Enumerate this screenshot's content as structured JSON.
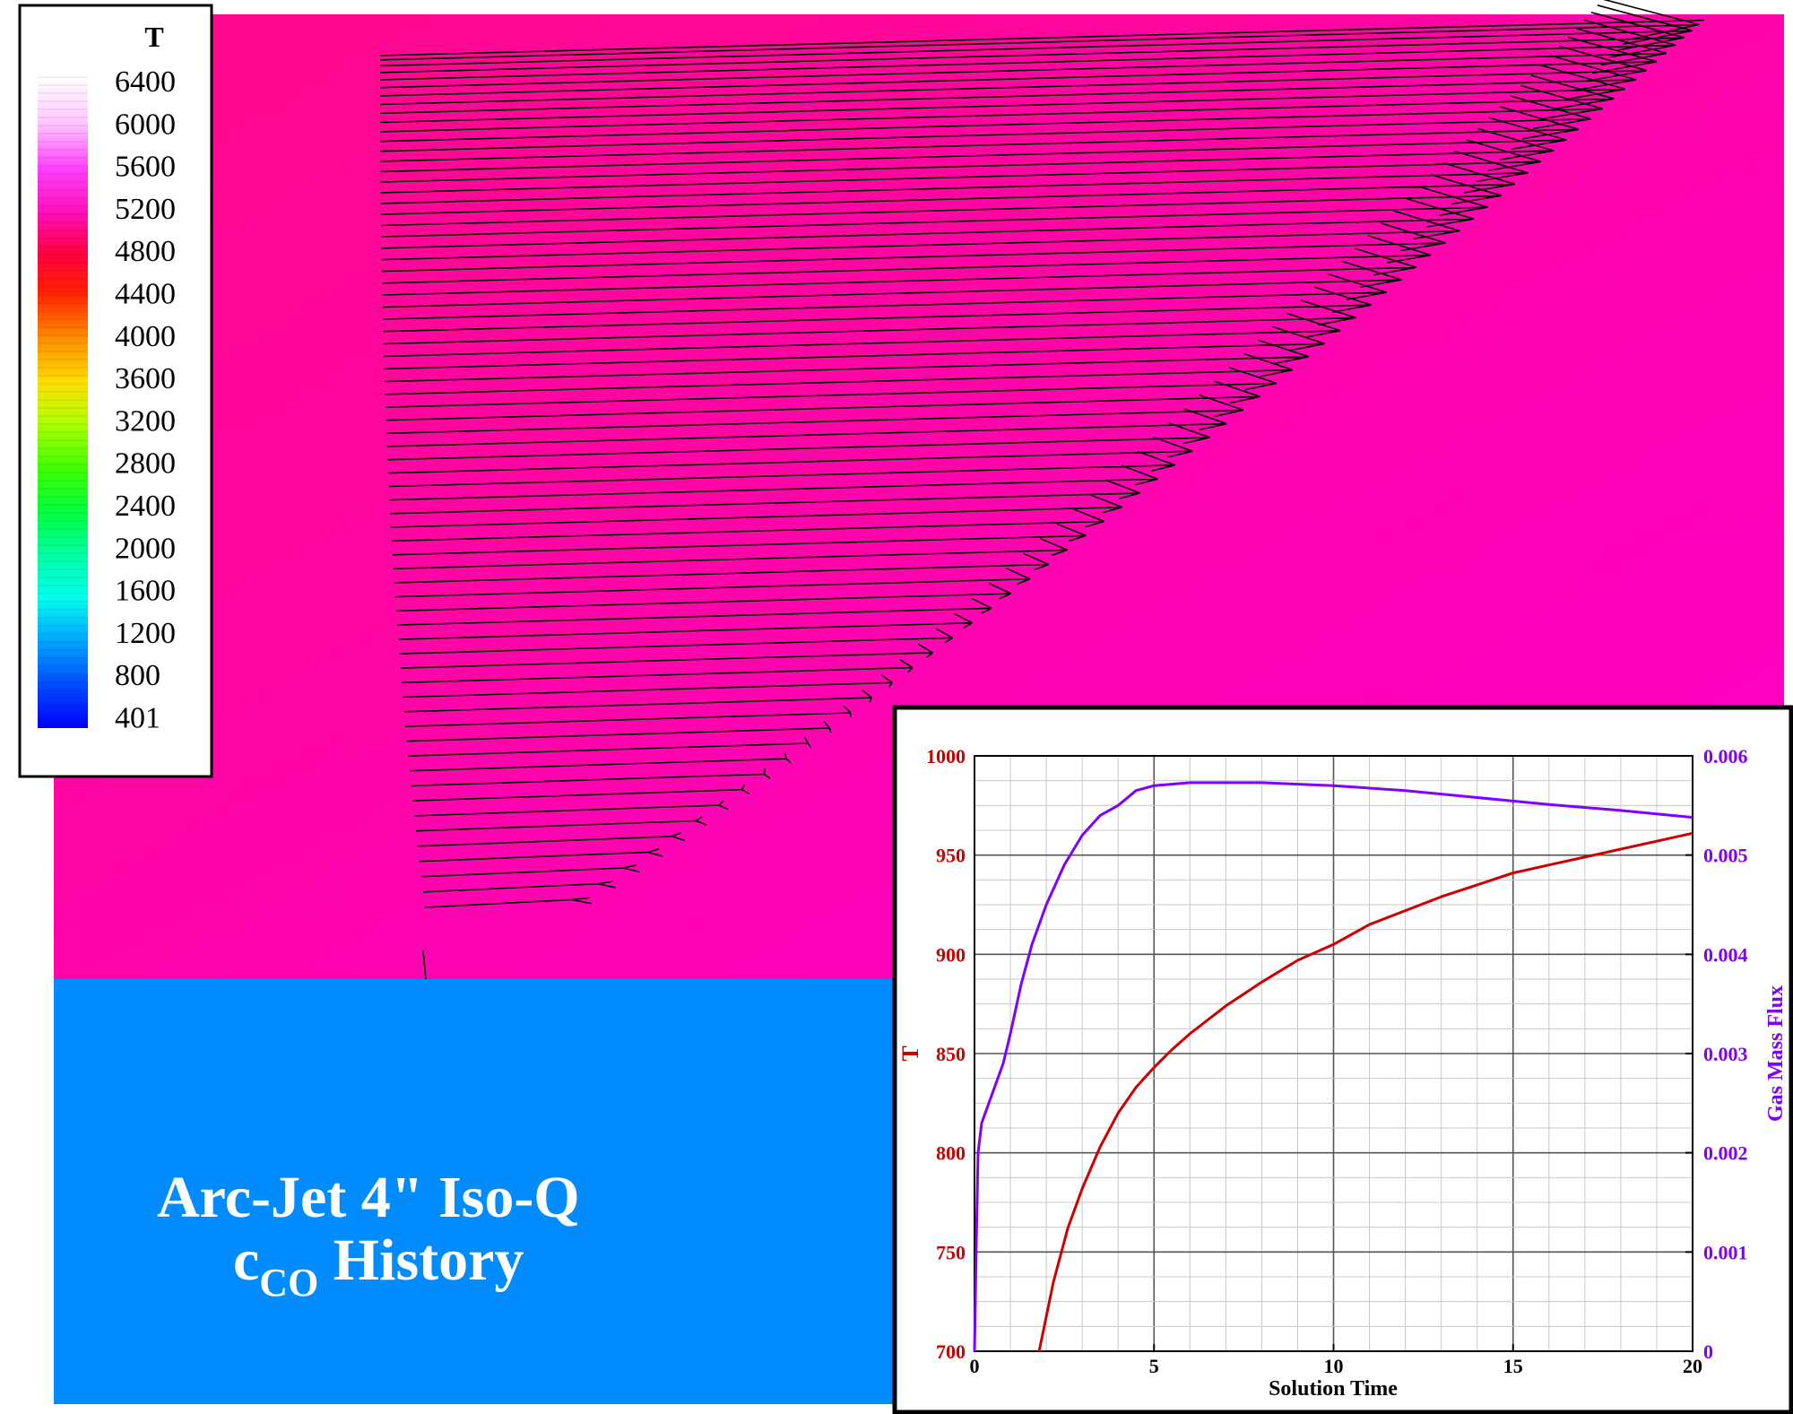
{
  "colors": {
    "gas_region": "#ff0aa6",
    "solid_region": "#008cff",
    "curve_T": "#cc0000",
    "curve_flux": "#8000ff",
    "frame": "#000000"
  },
  "legend": {
    "title": "T",
    "levels": [
      "6400",
      "6000",
      "5600",
      "5200",
      "4800",
      "4400",
      "4000",
      "3600",
      "3200",
      "2800",
      "2400",
      "2000",
      "1600",
      "1200",
      "800",
      "401"
    ]
  },
  "annotation": {
    "line1": "Arc-Jet 4\" Iso-Q",
    "line2_main": "c",
    "line2_sub": "CO",
    "line2_tail": " History"
  },
  "chart_data": {
    "type": "line",
    "xlabel": "Solution Time",
    "ylabel_left": "T",
    "ylabel_right": "Gas Mass Flux",
    "xlim": [
      0,
      20
    ],
    "ylim_left": [
      700,
      1000
    ],
    "ylim_right": [
      0,
      0.006
    ],
    "x_ticks": [
      "0",
      "5",
      "10",
      "15",
      "20"
    ],
    "y_left_ticks": [
      "700",
      "750",
      "800",
      "850",
      "900",
      "950",
      "1000"
    ],
    "y_right_ticks": [
      "0",
      "0.001",
      "0.002",
      "0.003",
      "0.004",
      "0.005",
      "0.006"
    ],
    "grid": true,
    "series": [
      {
        "axis": "left",
        "x": [
          1.8,
          2.2,
          2.6,
          3.0,
          3.5,
          4.0,
          4.5,
          5.0,
          5.5,
          6.0,
          7.0,
          8.0,
          9.0,
          10.0,
          11.0,
          12.0,
          13.0,
          14.0,
          15.0,
          16.0,
          17.0,
          18.0,
          19.0,
          20.0
        ],
        "values": [
          700,
          735,
          762,
          782,
          803,
          820,
          833,
          843,
          852,
          860,
          874,
          886,
          897,
          905,
          915,
          922,
          929,
          935,
          941,
          945,
          949,
          953,
          957,
          961
        ]
      },
      {
        "axis": "right",
        "x": [
          0.0,
          0.05,
          0.1,
          0.2,
          0.3,
          0.5,
          0.8,
          1.0,
          1.3,
          1.6,
          2.0,
          2.5,
          3.0,
          3.5,
          4.0,
          4.5,
          5.0,
          6.0,
          7.0,
          8.0,
          10.0,
          12.0,
          14.0,
          16.0,
          18.0,
          20.0
        ],
        "values": [
          0.0,
          0.0011,
          0.002,
          0.0023,
          0.0024,
          0.0026,
          0.0029,
          0.0032,
          0.0037,
          0.0041,
          0.0045,
          0.0049,
          0.0052,
          0.0054,
          0.0055,
          0.00565,
          0.0057,
          0.00573,
          0.00573,
          0.00573,
          0.0057,
          0.00565,
          0.00558,
          0.00551,
          0.00545,
          0.00538
        ]
      }
    ]
  }
}
